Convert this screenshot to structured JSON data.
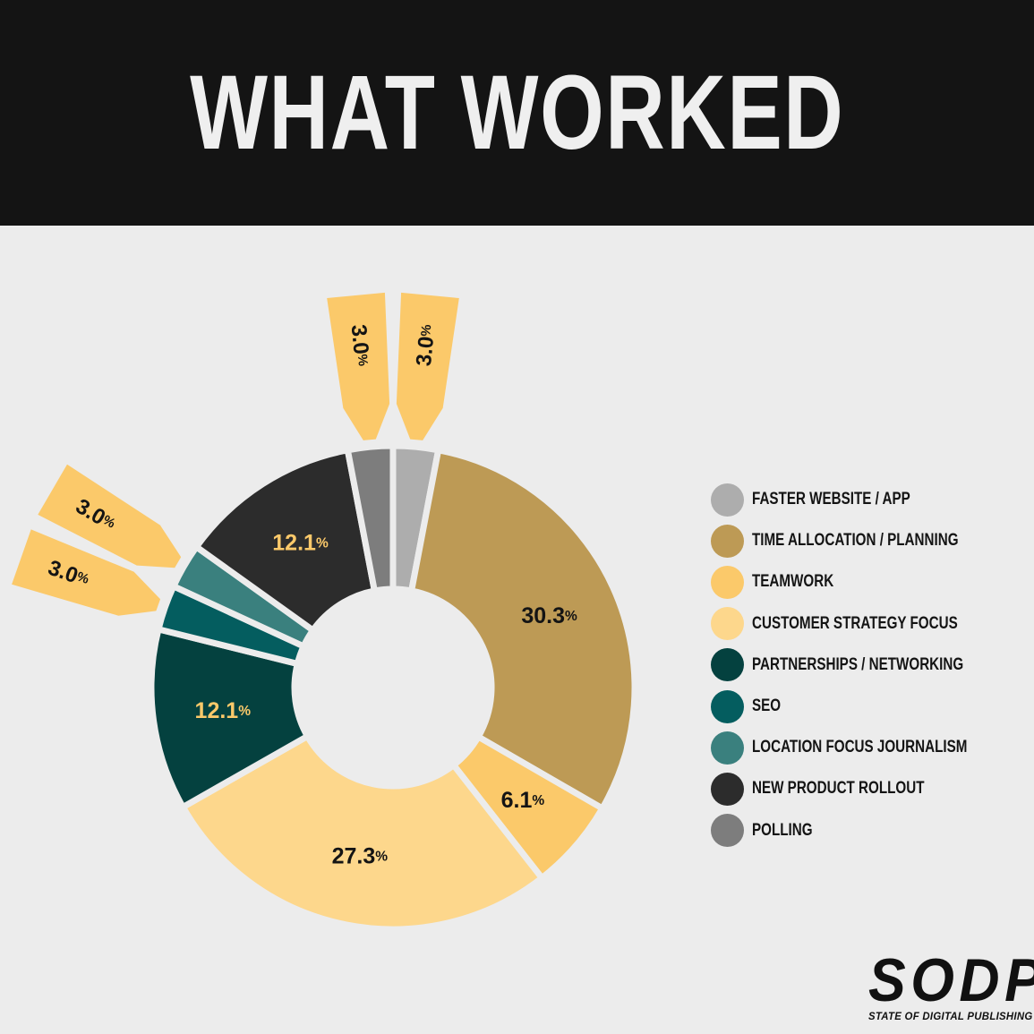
{
  "header": {
    "title": "WHAT WORKED"
  },
  "chart_data": {
    "type": "pie",
    "style": "donut",
    "categories": [
      "FASTER WEBSITE / APP",
      "TIME ALLOCATION / PLANNING",
      "TEAMWORK",
      "CUSTOMER STRATEGY FOCUS",
      "PARTNERSHIPS / NETWORKING",
      "SEO",
      "LOCATION FOCUS JOURNALISM",
      "NEW PRODUCT ROLLOUT",
      "POLLING"
    ],
    "values": [
      3.0,
      30.3,
      6.1,
      27.3,
      12.1,
      3.0,
      3.0,
      12.1,
      3.0
    ],
    "colors": [
      "#adadad",
      "#bd9a55",
      "#fbc96a",
      "#fdd78c",
      "#04413f",
      "#045d5f",
      "#3a807e",
      "#2c2c2c",
      "#7d7d7d"
    ],
    "label_colors": [
      "#141414",
      "#141414",
      "#141414",
      "#141414",
      "#fbc96a",
      "#141414",
      "#141414",
      "#fbc96a",
      "#141414"
    ],
    "callout_color": "#fbc96a",
    "unit": "%",
    "legend_position": "right"
  },
  "logo": {
    "mark": "SODP",
    "subtitle": "STATE OF DIGITAL PUBLISHING"
  }
}
